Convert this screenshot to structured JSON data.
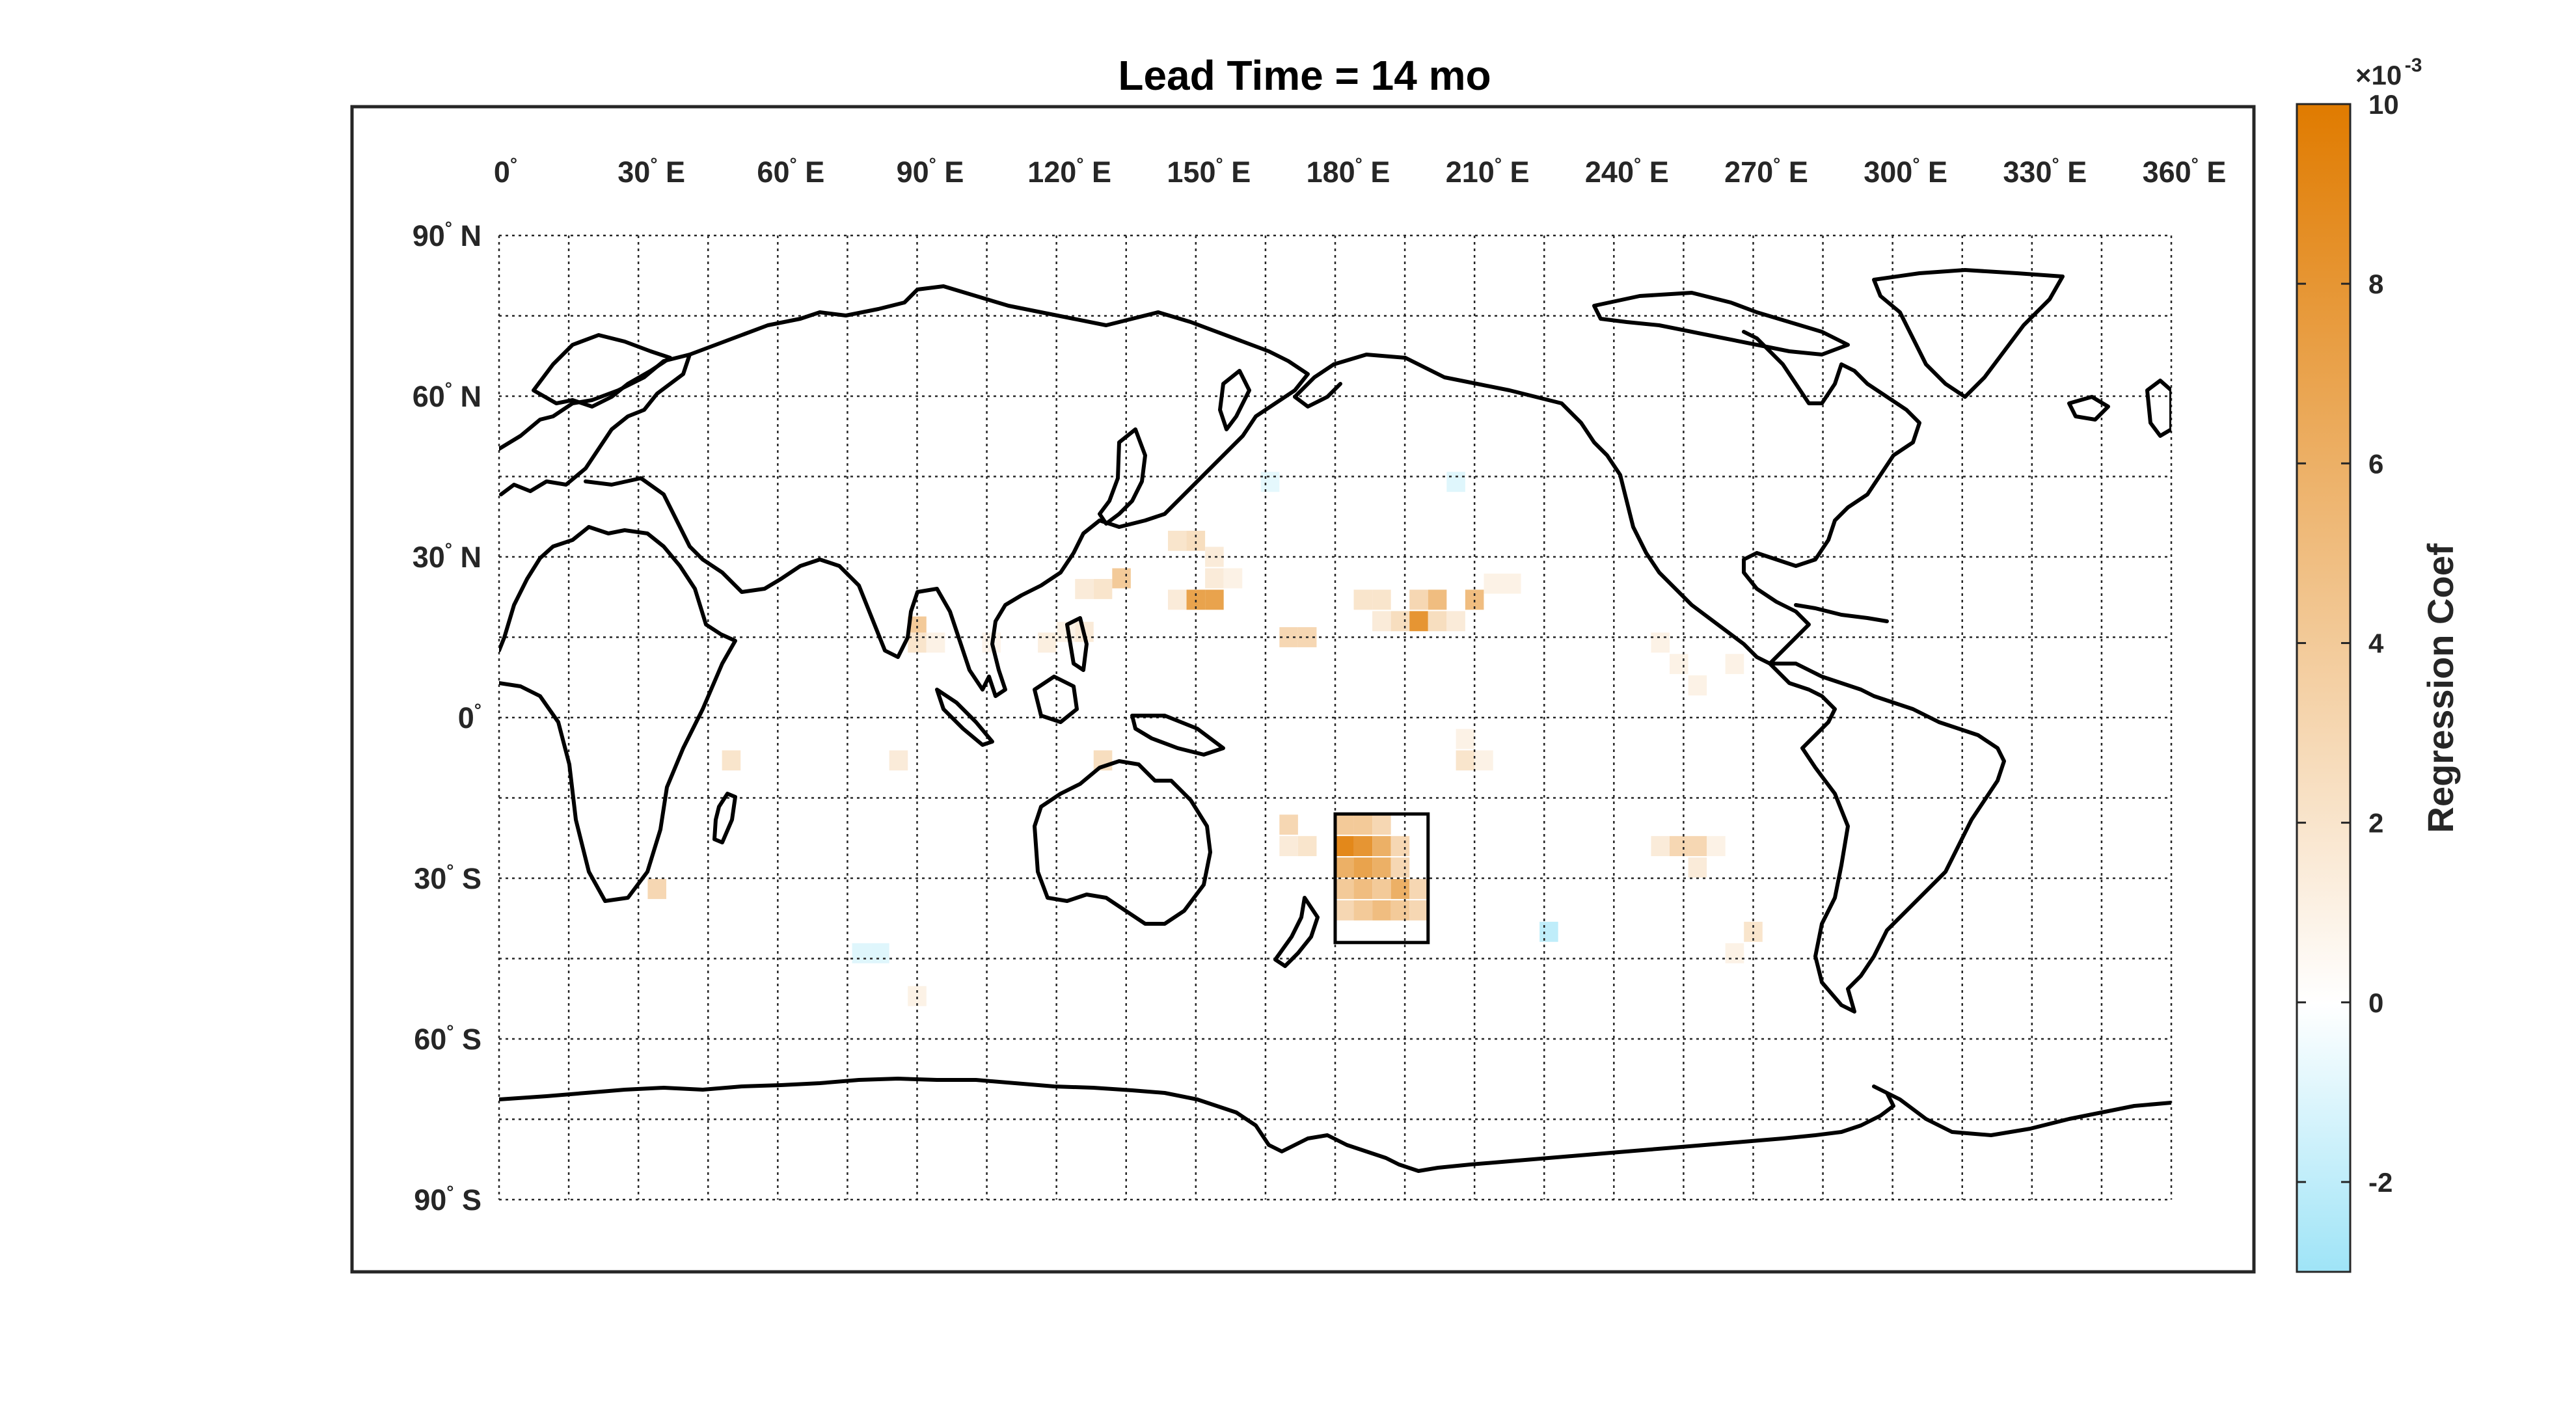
{
  "title": "Lead Time = 14 mo",
  "map": {
    "projection": "equirectangular",
    "lon_range": [
      0,
      360
    ],
    "lat_range": [
      -90,
      90
    ],
    "grid": true,
    "grid_step_deg": 15,
    "lon_ticks": [
      {
        "value": 0,
        "label": "0",
        "hemi": ""
      },
      {
        "value": 30,
        "label": "30",
        "hemi": "E"
      },
      {
        "value": 60,
        "label": "60",
        "hemi": "E"
      },
      {
        "value": 90,
        "label": "90",
        "hemi": "E"
      },
      {
        "value": 120,
        "label": "120",
        "hemi": "E"
      },
      {
        "value": 150,
        "label": "150",
        "hemi": "E"
      },
      {
        "value": 180,
        "label": "180",
        "hemi": "E"
      },
      {
        "value": 210,
        "label": "210",
        "hemi": "E"
      },
      {
        "value": 240,
        "label": "240",
        "hemi": "E"
      },
      {
        "value": 270,
        "label": "270",
        "hemi": "E"
      },
      {
        "value": 300,
        "label": "300",
        "hemi": "E"
      },
      {
        "value": 330,
        "label": "330",
        "hemi": "E"
      },
      {
        "value": 360,
        "label": "360",
        "hemi": "E"
      }
    ],
    "lat_ticks": [
      {
        "value": 90,
        "label": "90",
        "hemi": "N"
      },
      {
        "value": 60,
        "label": "60",
        "hemi": "N"
      },
      {
        "value": 30,
        "label": "30",
        "hemi": "N"
      },
      {
        "value": 0,
        "label": "0",
        "hemi": ""
      },
      {
        "value": -30,
        "label": "30",
        "hemi": "S"
      },
      {
        "value": -60,
        "label": "60",
        "hemi": "S"
      },
      {
        "value": -90,
        "label": "90",
        "hemi": "S"
      }
    ],
    "highlight_box": {
      "lon_min": 180,
      "lon_max": 200,
      "lat_min": -42,
      "lat_max": -18
    },
    "colors": {
      "positive": "#e07b00",
      "zero": "#ffffff",
      "negative": "#9fe4f7",
      "coast": "#000000"
    }
  },
  "colorbar": {
    "label": "Regression Coef",
    "exponent_base": "×10",
    "exponent_power": "-3",
    "range": [
      -3,
      10
    ],
    "ticks": [
      -2,
      0,
      2,
      4,
      6,
      8,
      10
    ],
    "tick_labels": [
      "-2",
      "0",
      "2",
      "4",
      "6",
      "8",
      "10"
    ]
  },
  "chart_data": {
    "type": "heatmap",
    "title": "Lead Time = 14 mo",
    "xlabel": "",
    "ylabel": "",
    "xlim": [
      0,
      360
    ],
    "ylim": [
      -90,
      90
    ],
    "value_scale": "×10^-3",
    "cell_size_deg": [
      4,
      3.75
    ],
    "cells": [
      {
        "lon": 90,
        "lat": 17,
        "value": 4
      },
      {
        "lon": 90,
        "lat": 14,
        "value": 2
      },
      {
        "lon": 94,
        "lat": 14,
        "value": 1
      },
      {
        "lon": 126,
        "lat": 16,
        "value": 1.5
      },
      {
        "lon": 122,
        "lat": 16,
        "value": 1
      },
      {
        "lon": 126,
        "lat": 24,
        "value": 1.5
      },
      {
        "lon": 130,
        "lat": 24,
        "value": 2
      },
      {
        "lon": 134,
        "lat": 26,
        "value": 4
      },
      {
        "lon": 146,
        "lat": 33,
        "value": 2
      },
      {
        "lon": 150,
        "lat": 33,
        "value": 2.5
      },
      {
        "lon": 154,
        "lat": 30,
        "value": 1.5
      },
      {
        "lon": 154,
        "lat": 26,
        "value": 1.5
      },
      {
        "lon": 158,
        "lat": 26,
        "value": 1
      },
      {
        "lon": 146,
        "lat": 22,
        "value": 1.5
      },
      {
        "lon": 150,
        "lat": 22,
        "value": 7
      },
      {
        "lon": 154,
        "lat": 22,
        "value": 7
      },
      {
        "lon": 170,
        "lat": 15,
        "value": 3
      },
      {
        "lon": 174,
        "lat": 15,
        "value": 3
      },
      {
        "lon": 186,
        "lat": 22,
        "value": 2
      },
      {
        "lon": 190,
        "lat": 22,
        "value": 2
      },
      {
        "lon": 190,
        "lat": 18,
        "value": 1.5
      },
      {
        "lon": 194,
        "lat": 18,
        "value": 2.5
      },
      {
        "lon": 198,
        "lat": 18,
        "value": 8
      },
      {
        "lon": 198,
        "lat": 22,
        "value": 3
      },
      {
        "lon": 202,
        "lat": 22,
        "value": 5
      },
      {
        "lon": 202,
        "lat": 18,
        "value": 2.5
      },
      {
        "lon": 206,
        "lat": 18,
        "value": 1.5
      },
      {
        "lon": 210,
        "lat": 22,
        "value": 5
      },
      {
        "lon": 214,
        "lat": 25,
        "value": 1
      },
      {
        "lon": 218,
        "lat": 25,
        "value": 1
      },
      {
        "lon": 50,
        "lat": -8,
        "value": 2
      },
      {
        "lon": 86,
        "lat": -8,
        "value": 1.5
      },
      {
        "lon": 106,
        "lat": 14,
        "value": 0.8
      },
      {
        "lon": 118,
        "lat": 14,
        "value": 1.2
      },
      {
        "lon": 130,
        "lat": -8,
        "value": 2.5
      },
      {
        "lon": 208,
        "lat": -4,
        "value": 1
      },
      {
        "lon": 208,
        "lat": -8,
        "value": 2
      },
      {
        "lon": 212,
        "lat": -8,
        "value": 1
      },
      {
        "lon": 170,
        "lat": -20,
        "value": 3
      },
      {
        "lon": 174,
        "lat": -24,
        "value": 2
      },
      {
        "lon": 170,
        "lat": -24,
        "value": 1.5
      },
      {
        "lon": 182,
        "lat": -20,
        "value": 4
      },
      {
        "lon": 186,
        "lat": -20,
        "value": 4
      },
      {
        "lon": 190,
        "lat": -20,
        "value": 3
      },
      {
        "lon": 182,
        "lat": -24,
        "value": 9
      },
      {
        "lon": 186,
        "lat": -24,
        "value": 8
      },
      {
        "lon": 190,
        "lat": -24,
        "value": 6
      },
      {
        "lon": 194,
        "lat": -24,
        "value": 3
      },
      {
        "lon": 182,
        "lat": -28,
        "value": 6
      },
      {
        "lon": 186,
        "lat": -28,
        "value": 7
      },
      {
        "lon": 190,
        "lat": -28,
        "value": 6
      },
      {
        "lon": 194,
        "lat": -28,
        "value": 3
      },
      {
        "lon": 182,
        "lat": -32,
        "value": 4
      },
      {
        "lon": 186,
        "lat": -32,
        "value": 5
      },
      {
        "lon": 190,
        "lat": -32,
        "value": 4
      },
      {
        "lon": 194,
        "lat": -32,
        "value": 6
      },
      {
        "lon": 198,
        "lat": -32,
        "value": 3
      },
      {
        "lon": 182,
        "lat": -36,
        "value": 3
      },
      {
        "lon": 186,
        "lat": -36,
        "value": 4
      },
      {
        "lon": 190,
        "lat": -36,
        "value": 5
      },
      {
        "lon": 194,
        "lat": -36,
        "value": 4
      },
      {
        "lon": 198,
        "lat": -36,
        "value": 3
      },
      {
        "lon": 254,
        "lat": -24,
        "value": 3
      },
      {
        "lon": 258,
        "lat": -24,
        "value": 3
      },
      {
        "lon": 250,
        "lat": -24,
        "value": 1.5
      },
      {
        "lon": 262,
        "lat": -24,
        "value": 1
      },
      {
        "lon": 258,
        "lat": -28,
        "value": 1.5
      },
      {
        "lon": 250,
        "lat": 14,
        "value": 1
      },
      {
        "lon": 254,
        "lat": 10,
        "value": 1
      },
      {
        "lon": 258,
        "lat": 6,
        "value": 1
      },
      {
        "lon": 266,
        "lat": 10,
        "value": 1
      },
      {
        "lon": 34,
        "lat": -32,
        "value": 3
      },
      {
        "lon": 90,
        "lat": -52,
        "value": 1
      },
      {
        "lon": 270,
        "lat": -40,
        "value": 2
      },
      {
        "lon": 266,
        "lat": -44,
        "value": 1
      },
      {
        "lon": 78,
        "lat": -44,
        "value": -1
      },
      {
        "lon": 82,
        "lat": -44,
        "value": -1
      },
      {
        "lon": 166,
        "lat": 44,
        "value": -0.8
      },
      {
        "lon": 206,
        "lat": 44,
        "value": -1
      },
      {
        "lon": 226,
        "lat": -40,
        "value": -2
      }
    ]
  }
}
